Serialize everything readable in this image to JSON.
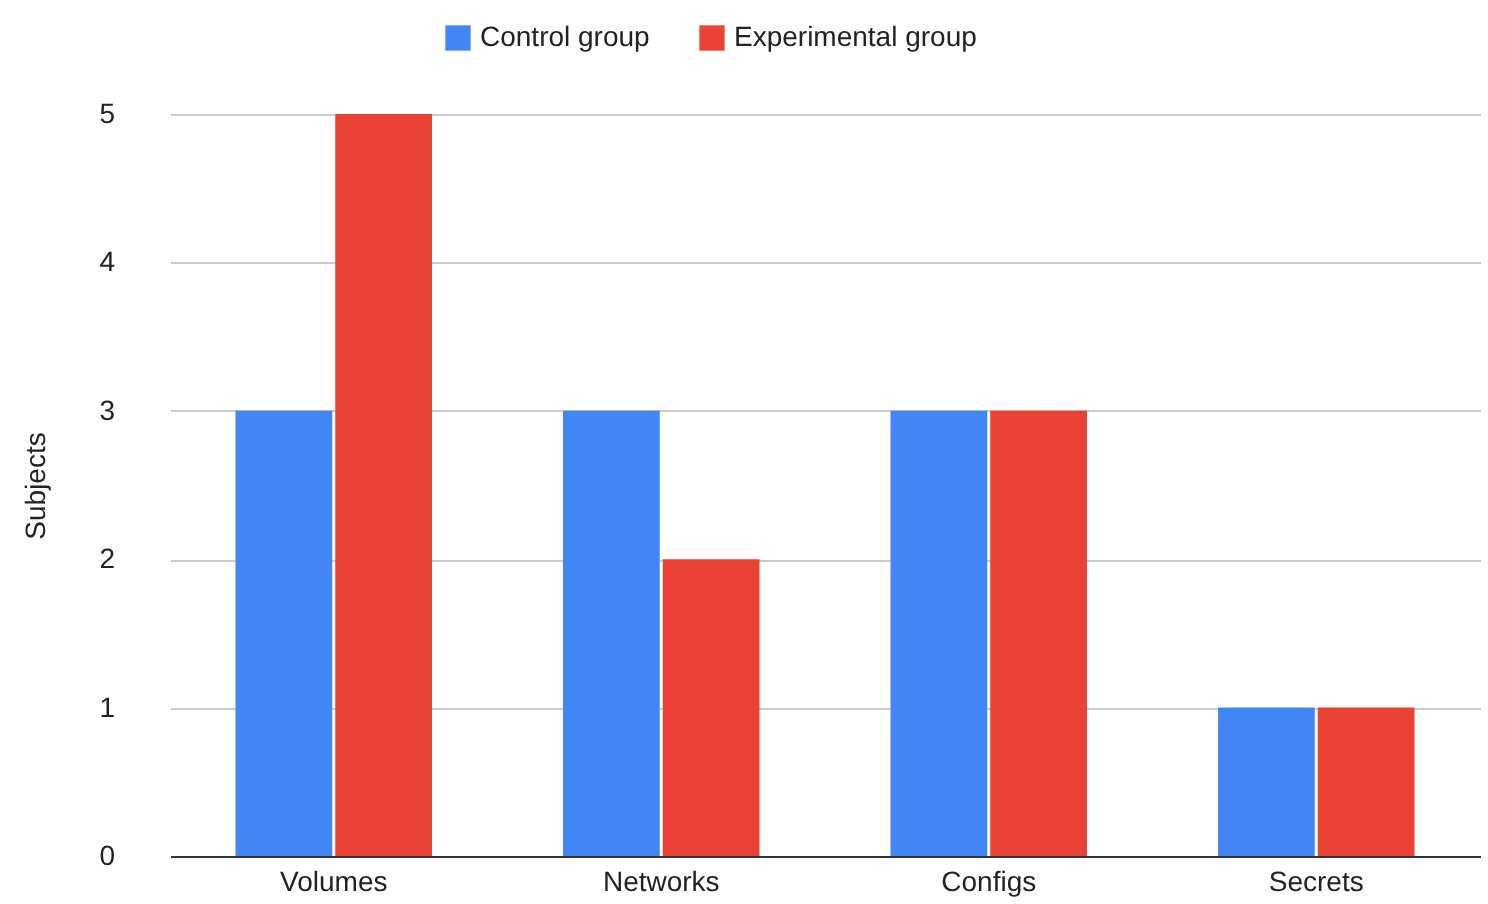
{
  "chart_data": {
    "type": "bar",
    "ylabel": "Subjects",
    "categories": [
      "Volumes",
      "Networks",
      "Configs",
      "Secrets"
    ],
    "series": [
      {
        "name": "Control group",
        "color": "#4285f4",
        "values": [
          3,
          3,
          3,
          1
        ]
      },
      {
        "name": "Experimental group",
        "color": "#ea4335",
        "values": [
          5,
          2,
          3,
          1
        ]
      }
    ],
    "ylim": [
      0,
      5
    ],
    "yticks": [
      0,
      1,
      2,
      3,
      4,
      5
    ],
    "grid": "y",
    "legend": "top"
  }
}
